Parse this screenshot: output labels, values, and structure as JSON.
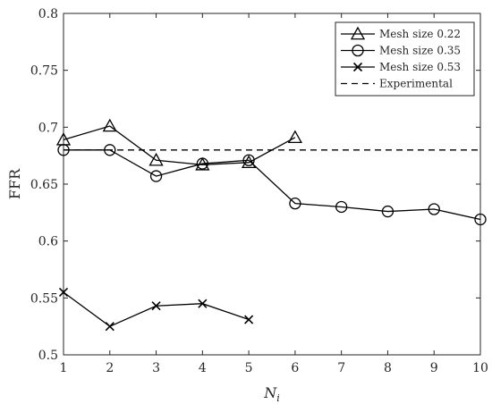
{
  "chart_data": {
    "type": "line",
    "title": "",
    "xlabel": "N",
    "xlabel_sub": "i",
    "ylabel": "FFR",
    "xlim": [
      1,
      10
    ],
    "ylim": [
      0.5,
      0.8
    ],
    "grid": false,
    "legend_position": "top-right",
    "x_ticks": [
      1,
      2,
      3,
      4,
      5,
      6,
      7,
      8,
      9,
      10
    ],
    "y_ticks": [
      0.5,
      0.55,
      0.6,
      0.65,
      0.7,
      0.75,
      0.8
    ],
    "x_tick_labels": [
      "1",
      "2",
      "3",
      "4",
      "5",
      "6",
      "7",
      "8",
      "9",
      "10"
    ],
    "y_tick_labels": [
      "0.5",
      "0.55",
      "0.6",
      "0.65",
      "0.7",
      "0.75",
      "0.8"
    ],
    "series": [
      {
        "name": "Mesh size 0.22",
        "marker": "triangle",
        "color": "#000000",
        "x": [
          1,
          2,
          3,
          4,
          5,
          6
        ],
        "y": [
          0.689,
          0.701,
          0.671,
          0.667,
          0.669,
          0.691
        ]
      },
      {
        "name": "Mesh size 0.35",
        "marker": "circle",
        "color": "#000000",
        "x": [
          1,
          2,
          3,
          4,
          5,
          6,
          7,
          8,
          9,
          10
        ],
        "y": [
          0.68,
          0.68,
          0.657,
          0.668,
          0.671,
          0.633,
          0.63,
          0.626,
          0.628,
          0.619
        ]
      },
      {
        "name": "Mesh size 0.53",
        "marker": "x",
        "color": "#000000",
        "x": [
          1,
          2,
          3,
          4,
          5
        ],
        "y": [
          0.555,
          0.525,
          0.543,
          0.545,
          0.531
        ]
      }
    ],
    "reference_lines": [
      {
        "name": "Experimental",
        "style": "dashed",
        "color": "#000000",
        "y": 0.68
      }
    ]
  }
}
